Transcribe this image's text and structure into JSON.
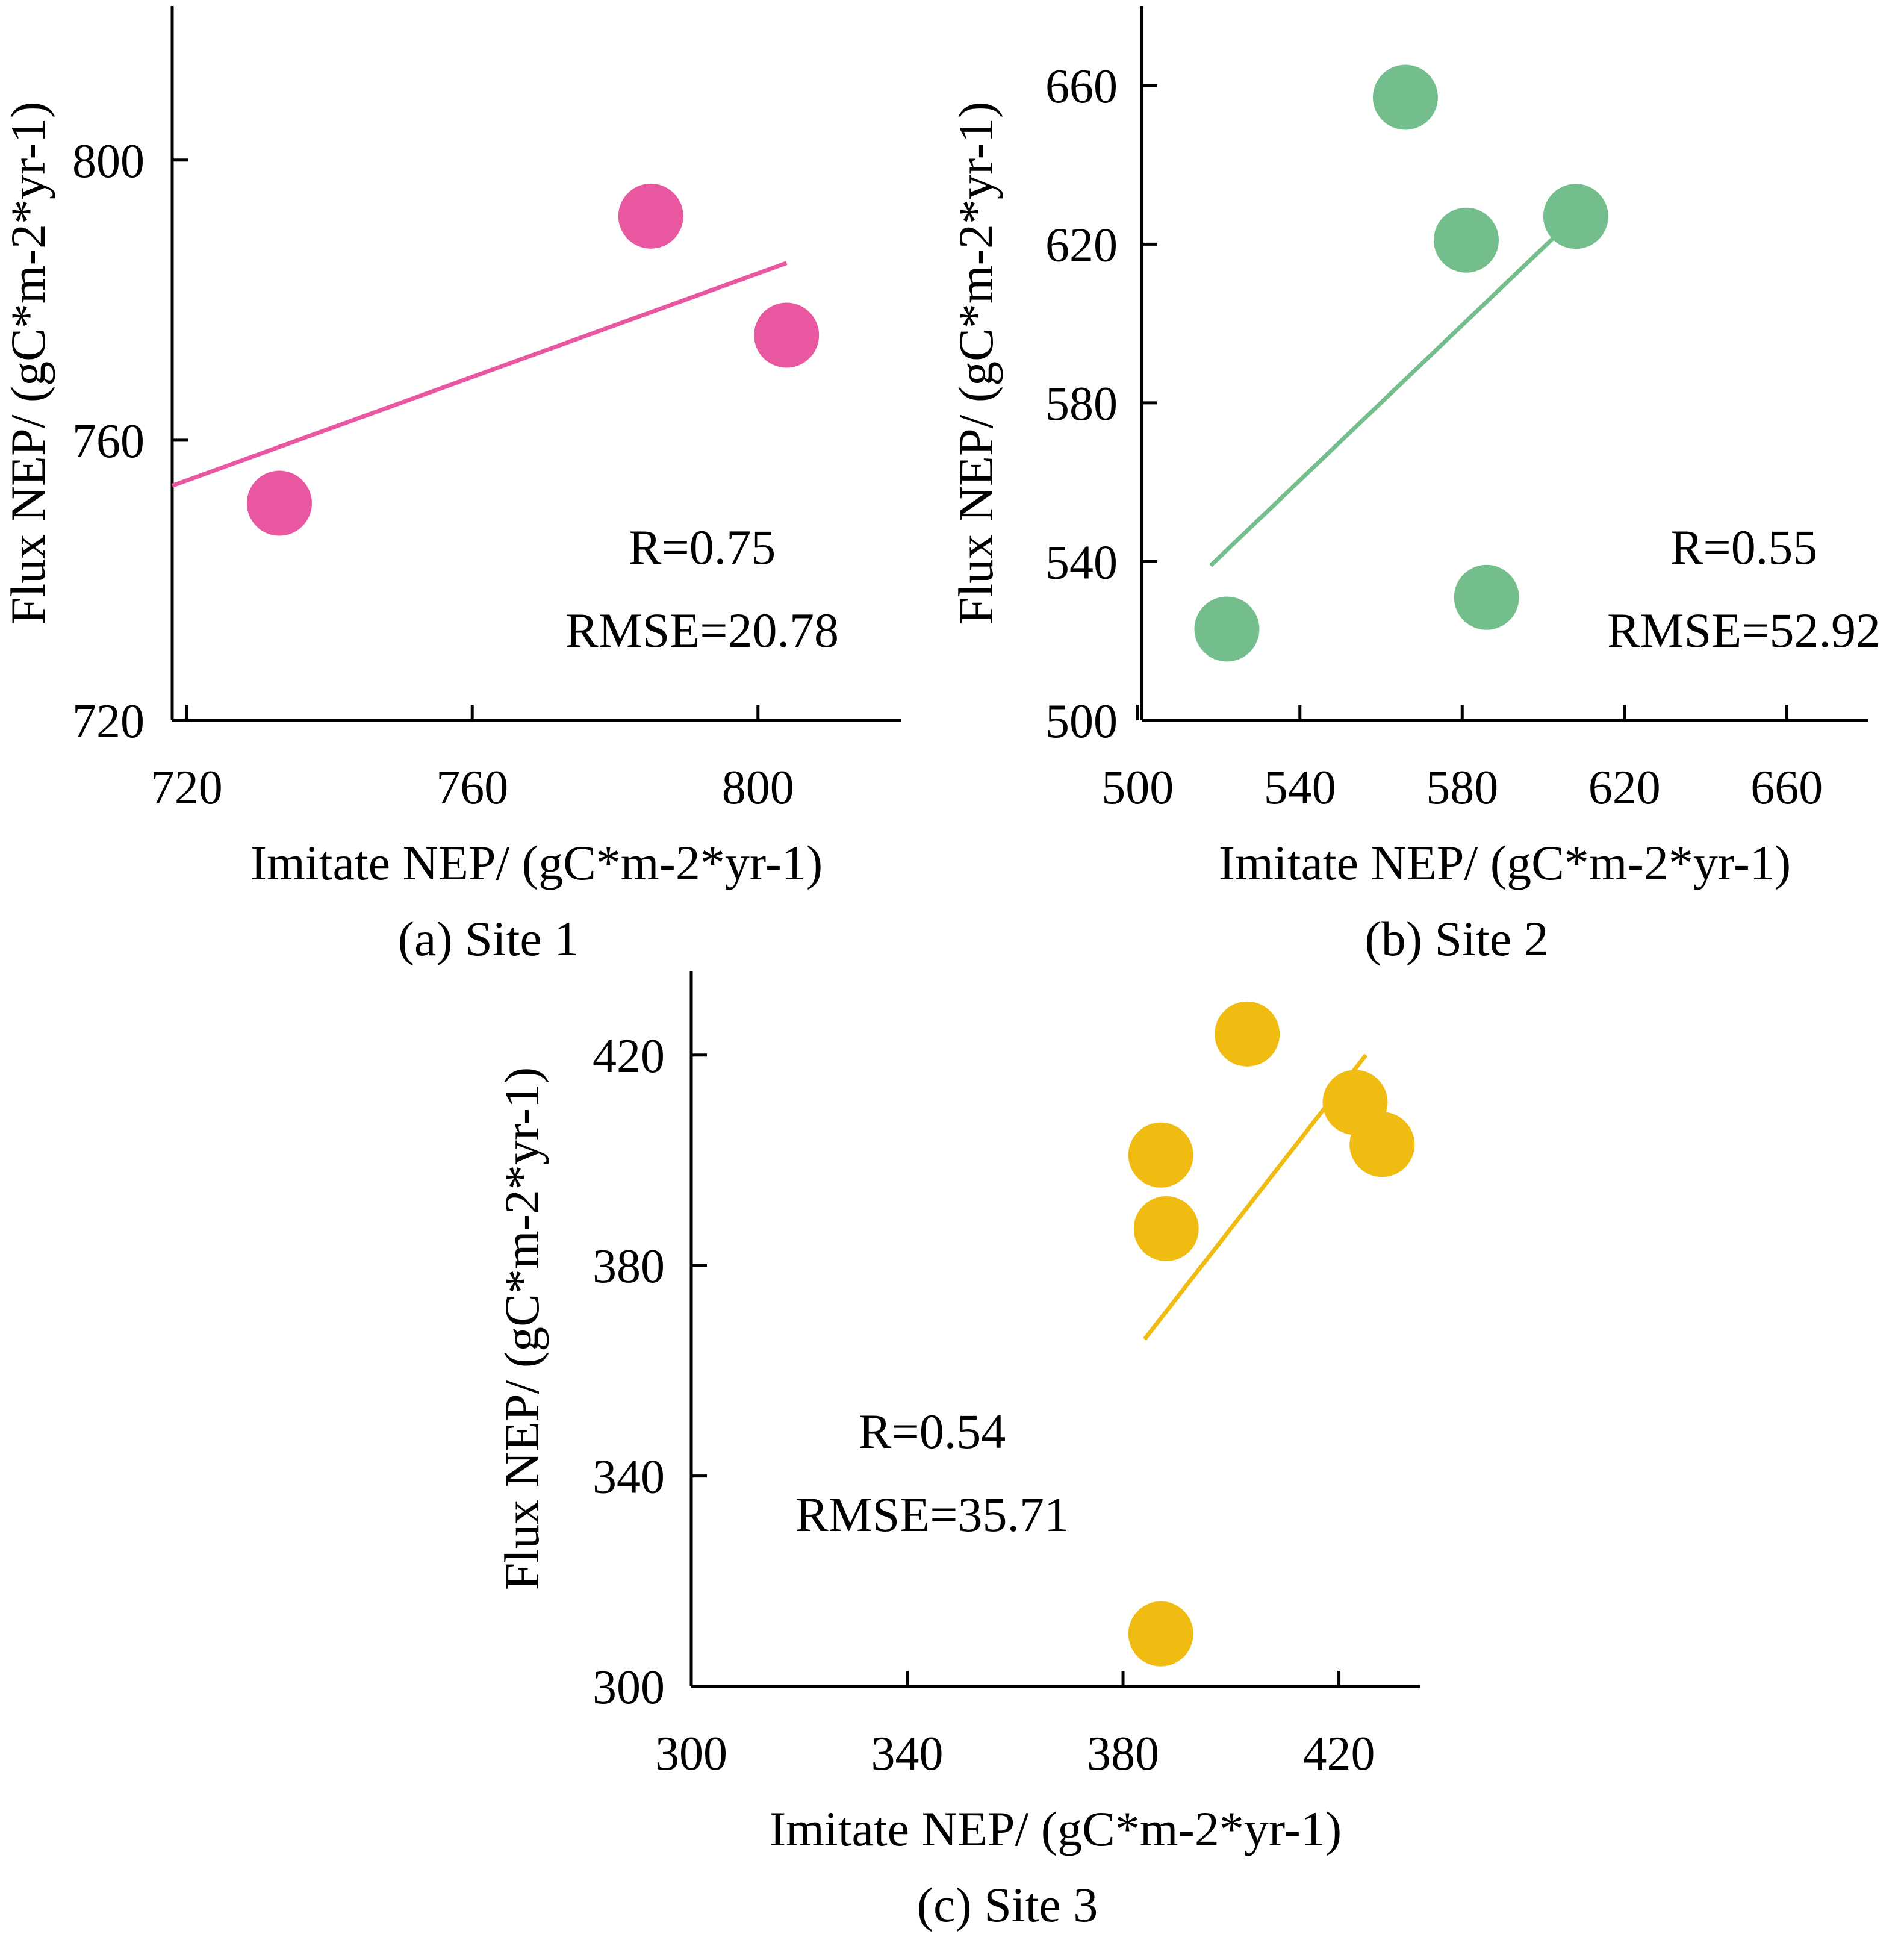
{
  "chart_data": [
    {
      "type": "scatter",
      "id": "site1",
      "caption": "(a) Site 1",
      "color": "#E8579F",
      "xlabel": "Imitate NEP/ (gC*m-2*yr-1)",
      "ylabel": "Flux NEP/ (gC*m-2*yr-1)",
      "xlim": [
        718,
        820
      ],
      "ylim": [
        720,
        822
      ],
      "xticks": [
        720,
        760,
        800
      ],
      "yticks": [
        720,
        760,
        800
      ],
      "points": [
        {
          "x": 733,
          "y": 751
        },
        {
          "x": 785,
          "y": 792
        },
        {
          "x": 804,
          "y": 775
        }
      ],
      "fit_line": {
        "x": [
          718,
          804
        ],
        "y": [
          753.5,
          785.3
        ]
      },
      "r_label": "R=0.75",
      "rmse_label": "RMSE=20.78"
    },
    {
      "type": "scatter",
      "id": "site2",
      "caption": "(b) Site 2",
      "color": "#73BE8C",
      "xlabel": "Imitate NEP/ (gC*m-2*yr-1)",
      "ylabel": "Flux NEP/ (gC*m-2*yr-1)",
      "xlim": [
        501,
        680
      ],
      "ylim": [
        500,
        680
      ],
      "xticks": [
        500,
        540,
        580,
        620,
        660
      ],
      "yticks": [
        500,
        540,
        580,
        620,
        660
      ],
      "points": [
        {
          "x": 522,
          "y": 523
        },
        {
          "x": 566,
          "y": 657
        },
        {
          "x": 581,
          "y": 621
        },
        {
          "x": 586,
          "y": 531
        },
        {
          "x": 608,
          "y": 627
        }
      ],
      "fit_line": {
        "x": [
          518,
          606
        ],
        "y": [
          539,
          625
        ]
      },
      "r_label": "R=0.55",
      "rmse_label": "RMSE=52.92"
    },
    {
      "type": "scatter",
      "id": "site3",
      "caption": "(c) Site 3",
      "color": "#F0BC12",
      "xlabel": "Imitate NEP/ (gC*m-2*yr-1)",
      "ylabel": "Flux NEP/ (gC*m-2*yr-1)",
      "xlim": [
        300,
        435
      ],
      "ylim": [
        300,
        436
      ],
      "xticks": [
        300,
        340,
        380,
        420
      ],
      "yticks": [
        300,
        340,
        380,
        420
      ],
      "points": [
        {
          "x": 387,
          "y": 310
        },
        {
          "x": 388,
          "y": 387
        },
        {
          "x": 387,
          "y": 401
        },
        {
          "x": 403,
          "y": 424
        },
        {
          "x": 423,
          "y": 411
        },
        {
          "x": 428,
          "y": 403
        }
      ],
      "fit_line": {
        "x": [
          384,
          425
        ],
        "y": [
          366,
          420
        ]
      },
      "r_label": "R=0.54",
      "rmse_label": "RMSE=35.71"
    }
  ]
}
